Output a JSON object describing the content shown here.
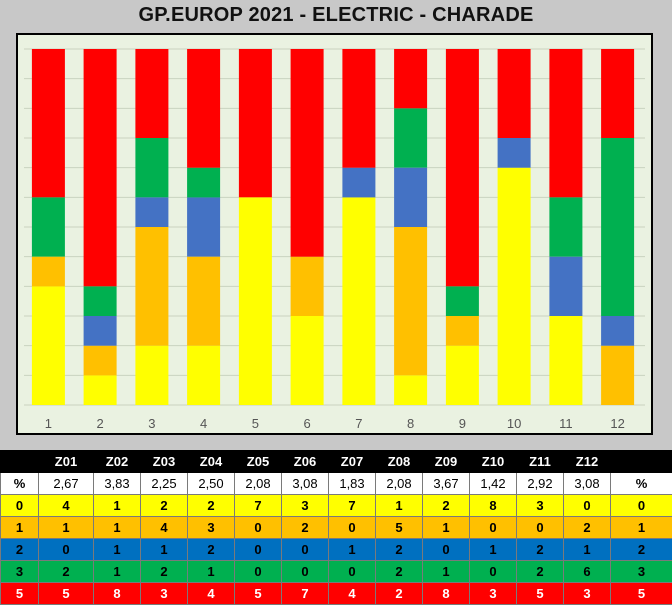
{
  "title": "GP.EUROP 2021 - ELECTRIC  - CHARADE",
  "colors": {
    "s0": "#ffff00",
    "s1": "#ffc000",
    "s2": "#4472c4",
    "s3": "#00b050",
    "s5": "#ff0000",
    "plot_bg": "#eaf2e1"
  },
  "chart_data": {
    "type": "bar",
    "stacked": true,
    "categories": [
      "1",
      "2",
      "3",
      "4",
      "5",
      "6",
      "7",
      "8",
      "9",
      "10",
      "11",
      "12"
    ],
    "series": [
      {
        "key": "0",
        "color": "#ffff00",
        "values": [
          4,
          1,
          2,
          2,
          7,
          3,
          7,
          1,
          2,
          8,
          3,
          0
        ]
      },
      {
        "key": "1",
        "color": "#ffc000",
        "values": [
          1,
          1,
          4,
          3,
          0,
          2,
          0,
          5,
          1,
          0,
          0,
          2
        ]
      },
      {
        "key": "2",
        "color": "#4472c4",
        "values": [
          0,
          1,
          1,
          2,
          0,
          0,
          1,
          2,
          0,
          1,
          2,
          1
        ]
      },
      {
        "key": "3",
        "color": "#00b050",
        "values": [
          2,
          1,
          2,
          1,
          0,
          0,
          0,
          2,
          1,
          0,
          2,
          6
        ]
      },
      {
        "key": "5",
        "color": "#ff0000",
        "values": [
          5,
          8,
          3,
          4,
          5,
          7,
          4,
          2,
          8,
          3,
          5,
          3
        ]
      }
    ],
    "ylim": [
      0,
      12
    ],
    "grid": true
  },
  "table": {
    "columns": [
      "",
      "Z01",
      "Z02",
      "Z03",
      "Z04",
      "Z05",
      "Z06",
      "Z07",
      "Z08",
      "Z09",
      "Z10",
      "Z11",
      "Z12",
      ""
    ],
    "pct_row": [
      "%",
      "2,67",
      "3,83",
      "2,25",
      "2,50",
      "2,08",
      "3,08",
      "1,83",
      "2,08",
      "3,67",
      "1,42",
      "2,92",
      "3,08",
      "%"
    ],
    "rows": [
      {
        "cls": "r0",
        "cells": [
          "0",
          "4",
          "1",
          "2",
          "2",
          "7",
          "3",
          "7",
          "1",
          "2",
          "8",
          "3",
          "0",
          "0"
        ]
      },
      {
        "cls": "r1",
        "cells": [
          "1",
          "1",
          "1",
          "4",
          "3",
          "0",
          "2",
          "0",
          "5",
          "1",
          "0",
          "0",
          "2",
          "1"
        ]
      },
      {
        "cls": "r2",
        "cells": [
          "2",
          "0",
          "1",
          "1",
          "2",
          "0",
          "0",
          "1",
          "2",
          "0",
          "1",
          "2",
          "1",
          "2"
        ]
      },
      {
        "cls": "r3",
        "cells": [
          "3",
          "2",
          "1",
          "2",
          "1",
          "0",
          "0",
          "0",
          "2",
          "1",
          "0",
          "2",
          "6",
          "3"
        ]
      },
      {
        "cls": "r5",
        "cells": [
          "5",
          "5",
          "8",
          "3",
          "4",
          "5",
          "7",
          "4",
          "2",
          "8",
          "3",
          "5",
          "3",
          "5"
        ]
      }
    ]
  }
}
